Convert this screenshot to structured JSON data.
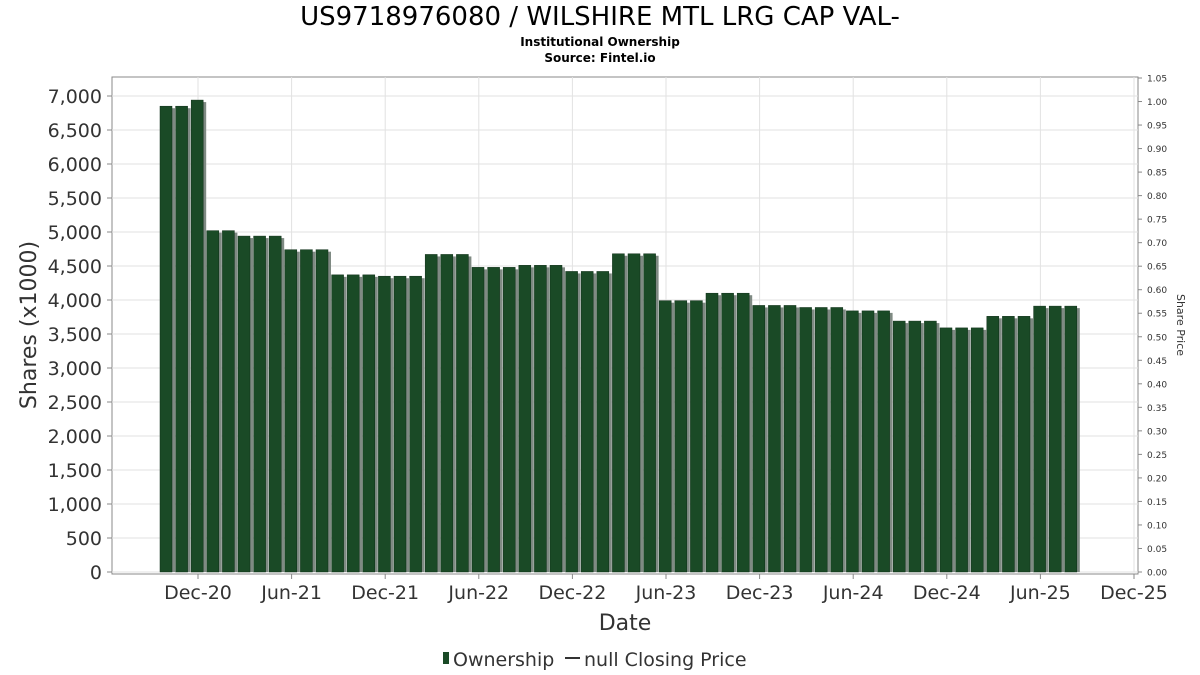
{
  "chart_data": {
    "type": "bar",
    "title": "US9718976080 / WILSHIRE MTL LRG CAP VAL-",
    "subtitle_lines": [
      "Institutional Ownership",
      "Source: Fintel.io"
    ],
    "xlabel": "Date",
    "ylabel": "Shares (x1000)",
    "y2label": "Share Price",
    "ylim": [
      0,
      7300
    ],
    "y_ticks": [
      "0",
      "500",
      "1,000",
      "1,500",
      "2,000",
      "2,500",
      "3,000",
      "3,500",
      "4,000",
      "4,500",
      "5,000",
      "5,500",
      "6,000",
      "6,500",
      "7,000"
    ],
    "y2_ticks": [
      "0.00",
      "0.05",
      "0.10",
      "0.15",
      "0.20",
      "0.25",
      "0.30",
      "0.35",
      "0.40",
      "0.45",
      "0.50",
      "0.55",
      "0.60",
      "0.65",
      "0.70",
      "0.75",
      "0.80",
      "0.85",
      "0.90",
      "0.95",
      "1.00",
      "1.05"
    ],
    "x_ticks": [
      "Dec-20",
      "Jun-21",
      "Dec-21",
      "Jun-22",
      "Dec-22",
      "Jun-23",
      "Dec-23",
      "Jun-24",
      "Dec-24",
      "Jun-25",
      "Dec-25"
    ],
    "grid": true,
    "legend_position": "bottom",
    "legend": [
      "Ownership",
      "null Closing Price"
    ],
    "series": [
      {
        "name": "Ownership",
        "color": "#1a4a26",
        "values": [
          6850,
          6850,
          6940,
          5020,
          5020,
          4940,
          4940,
          4940,
          4740,
          4740,
          4740,
          4370,
          4370,
          4370,
          4350,
          4350,
          4350,
          4670,
          4670,
          4670,
          4480,
          4480,
          4480,
          4510,
          4510,
          4510,
          4420,
          4420,
          4420,
          4680,
          4680,
          4680,
          3990,
          3990,
          3990,
          4100,
          4100,
          4100,
          3920,
          3920,
          3920,
          3890,
          3890,
          3890,
          3840,
          3840,
          3840,
          3690,
          3690,
          3690,
          3590,
          3590,
          3590,
          3760,
          3760,
          3760,
          3910,
          3910,
          3910
        ]
      }
    ]
  }
}
